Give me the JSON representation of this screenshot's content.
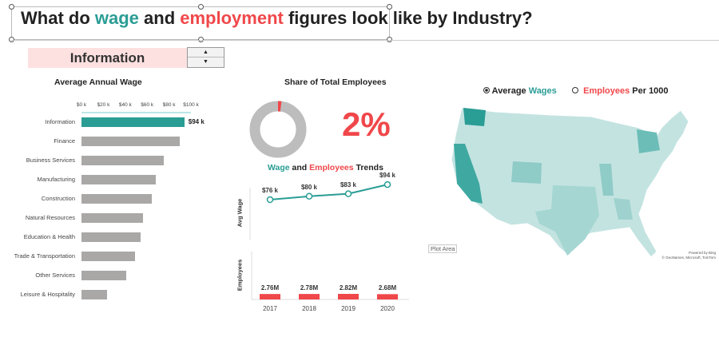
{
  "title": {
    "part1": "What do ",
    "wage": "wage",
    "part2": " and ",
    "employment": "employment",
    "part3": " figures look like by Industry?"
  },
  "selector": {
    "value": "Information",
    "up": "▲",
    "down": "▼"
  },
  "wage_chart": {
    "title": "Average Annual Wage",
    "ticks": [
      "$0 k",
      "$20 k",
      "$40 k",
      "$60 k",
      "$80 k",
      "$100 k"
    ],
    "chart_data": {
      "type": "bar",
      "title": "Average Annual Wage",
      "xlim": [
        0,
        100
      ],
      "categories": [
        "Information",
        "Finance",
        "Business Services",
        "Manufacturing",
        "Construction",
        "Natural Resources",
        "Education & Health",
        "Trade & Transportation",
        "Other Services",
        "Leisure & Hospitality"
      ],
      "values": [
        94,
        90,
        75,
        68,
        64,
        56,
        54,
        49,
        41,
        23
      ],
      "highlight": "Information",
      "highlight_label": "$94 k",
      "highlight_color": "#2a9d95",
      "bar_color": "#aaa7a7"
    }
  },
  "share": {
    "title": "Share of Total Employees",
    "value_label": "2%",
    "chart_data": {
      "type": "pie",
      "values": [
        2,
        98
      ],
      "colors": [
        "#f0474a",
        "#bdbdbd"
      ]
    }
  },
  "trends": {
    "title_wage": "Wage",
    "title_and": " and ",
    "title_emp": "Employees",
    "title_end": " Trends",
    "y1_label": "Avg Wage",
    "y2_label": "Employees",
    "chart_data": {
      "type": "line",
      "x": [
        "2017",
        "2018",
        "2019",
        "2020"
      ],
      "wage": [
        76,
        80,
        83,
        94
      ],
      "wage_labels": [
        "$76 k",
        "$80 k",
        "$83 k",
        "$94 k"
      ],
      "employees": [
        2.76,
        2.78,
        2.82,
        2.68
      ],
      "employee_labels": [
        "2.76M",
        "2.78M",
        "2.82M",
        "2.68M"
      ]
    }
  },
  "plot_area_tooltip": "Plot Area",
  "map": {
    "option1_a": "Average ",
    "option1_b": "Wages",
    "option2_a": "Employees",
    "option2_b": " Per 1000",
    "selected": "option1",
    "credit1": "Powered by Bing",
    "credit2": "© GeoNames, Microsoft, TomTom"
  }
}
